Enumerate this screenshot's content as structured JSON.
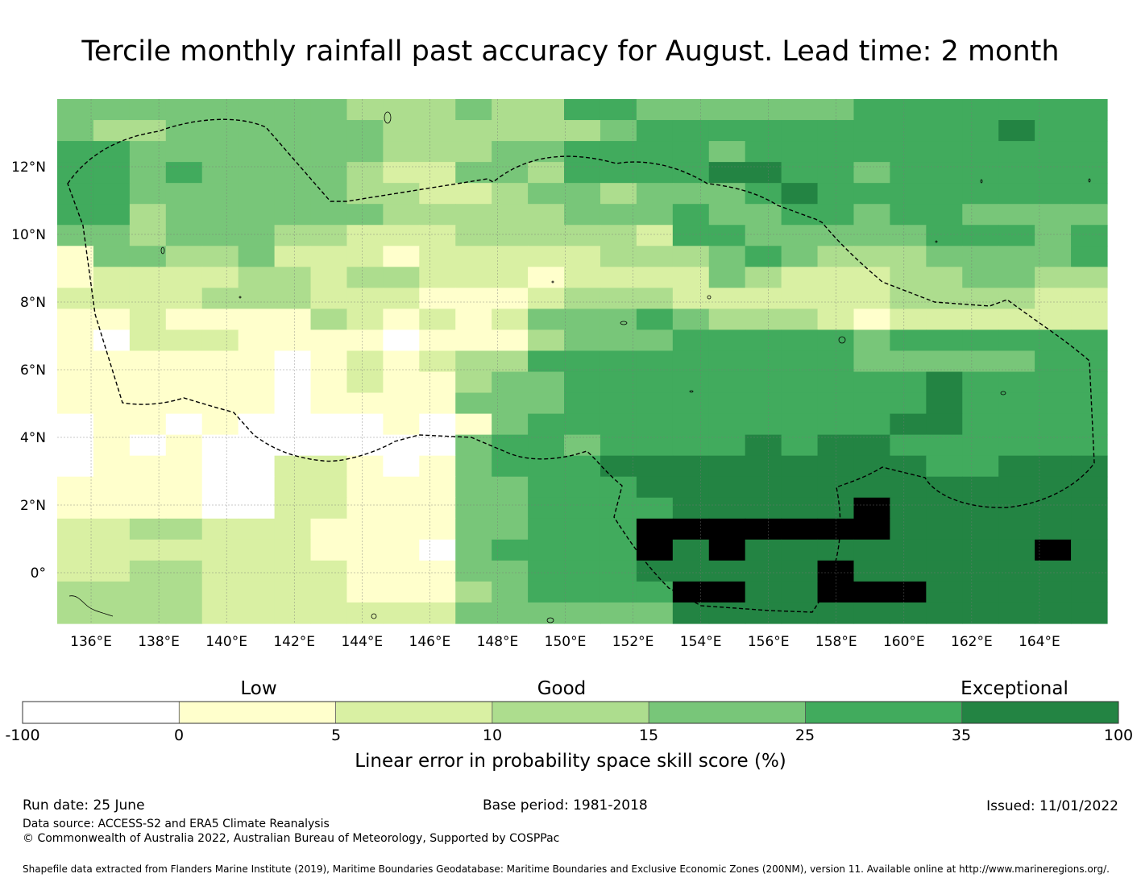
{
  "title": "Tercile monthly rainfall past accuracy for August. Lead time: 2 month",
  "map": {
    "lon_ticks": [
      "136°E",
      "138°E",
      "140°E",
      "142°E",
      "144°E",
      "146°E",
      "148°E",
      "150°E",
      "152°E",
      "154°E",
      "156°E",
      "158°E",
      "160°E",
      "162°E",
      "164°E"
    ],
    "lat_ticks": [
      "12°N",
      "10°N",
      "8°N",
      "6°N",
      "4°N",
      "2°N",
      "0°"
    ],
    "lon_range": [
      135.0,
      166.0
    ],
    "lat_range": [
      -1.5,
      14.0
    ],
    "gridlines": true,
    "eez_boundary": "dashed black outline",
    "grid_rows": [
      "44444444333433554444445555555",
      "43344444433333345555555555655",
      "55444444433344555545555555555",
      "55454444322443555566554555555",
      "55444444332234434445655555555",
      "55344444433333444544554554444",
      "44344433222333332554444455545",
      "14433422212222233345433344445",
      "12222332332221222243222334433",
      "22223332221112333222222333322",
      "11211113212124445433321222222",
      "10222111101113444555554555555",
      "11111101212335555555554444455",
      "11111101211344555555555565555",
      "11111101111444555555555565555",
      "01101000010145555555555665555",
      "01010000000455455556566555555",
      "01110022101455566666666655666",
      "11110022111445556666666666666",
      "11110022111445555666667666666",
      "22332221111445557777777666666",
      "22222221110455557676666666676",
      "22332222111445556666676666666",
      "33332222111345555776677766666",
      "33332222222444444666666666666"
    ],
    "legend_colors": [
      "#ffffff",
      "#ffffcc",
      "#d9f0a3",
      "#addd8e",
      "#78c679",
      "#41ab5d",
      "#238443"
    ]
  },
  "colorbar": {
    "categories": [
      "Low",
      "Good",
      "Exceptional"
    ],
    "ticks": [
      "-100",
      "0",
      "5",
      "10",
      "15",
      "25",
      "35",
      "100"
    ],
    "colors": [
      "#ffffff",
      "#ffffcc",
      "#d9f0a3",
      "#addd8e",
      "#78c679",
      "#41ab5d",
      "#238443"
    ],
    "label": "Linear error in probability space skill score (%)"
  },
  "footer": {
    "run_date": "Run date: 25 June",
    "base_period": "Base period: 1981-2018",
    "issued": "Issued: 11/01/2022",
    "data_source": "Data source: ACCESS-S2 and ERA5 Climate Reanalysis",
    "copyright": "© Commonwealth of Australia 2022, Australian Bureau of Meteorology, Supported by COSPPac",
    "shapefile": "Shapefile data extracted from Flanders Marine Institute (2019), Maritime Boundaries Geodatabase: Maritime Boundaries and Exclusive Economic Zones (200NM), version 11. Available online at http://www.marineregions.org/."
  }
}
